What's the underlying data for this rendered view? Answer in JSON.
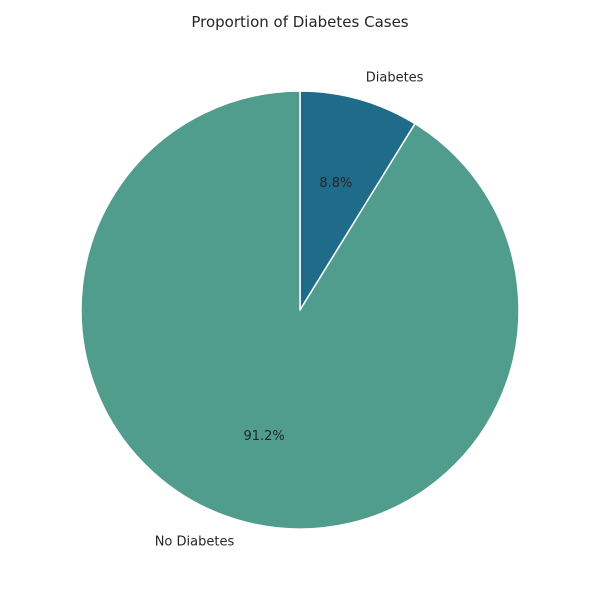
{
  "chart_data": {
    "type": "pie",
    "title": "Proportion of Diabetes Cases",
    "slices": [
      {
        "label": "Diabetes",
        "value": 8.8,
        "pct_label": "8.8%",
        "color": "#1f6b8a"
      },
      {
        "label": "No Diabetes",
        "value": 91.2,
        "pct_label": "91.2%",
        "color": "#509d8e"
      }
    ],
    "start_angle_deg": 90,
    "direction": "clockwise",
    "edge_color": "#ffffff"
  }
}
